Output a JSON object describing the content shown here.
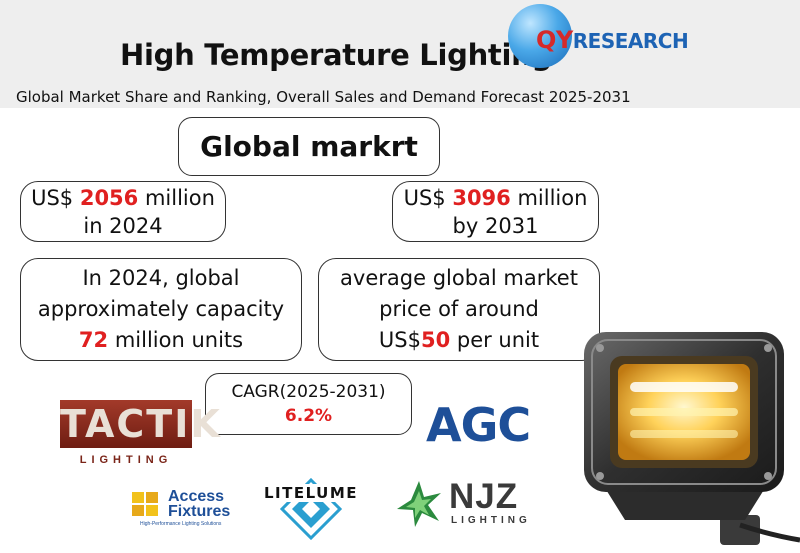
{
  "header": {
    "title": "High Temperature Lighting",
    "subtitle": "Global Market Share and Ranking, Overall Sales and Demand Forecast 2025-2031",
    "logo_prefix": "QY",
    "logo_rest": "RESEARCH"
  },
  "boxes": {
    "global": "Global markrt",
    "market_2024": {
      "prefix": "US$ ",
      "value": "2056",
      "suffix": " million",
      "line2": "in 2024"
    },
    "market_2031": {
      "prefix": "US$ ",
      "value": "3096",
      "suffix": " million",
      "line2": "by 2031"
    },
    "capacity": {
      "line1": "In 2024, global",
      "line2": "approximately capacity",
      "value": "72",
      "suffix": " million units"
    },
    "price": {
      "line1": "average global market",
      "line2": "price of around",
      "prefix": "US$",
      "value": "50",
      "suffix": " per unit"
    },
    "cagr": {
      "label": "CAGR(2025-2031)",
      "value": "6.2%"
    }
  },
  "logos": {
    "tactik_word": "TACTIK",
    "tactik_sub": "LIGHTING",
    "agc": "AGC",
    "access_1": "Access",
    "access_2": "Fixtures",
    "access_tag": "High-Performance Lighting Solutions",
    "litelume": "LITELUME",
    "njz_word": "NJZ",
    "njz_sub": "LIGHTING"
  },
  "colors": {
    "accent_red": "#e02020",
    "agc_blue": "#1e4f98",
    "tactik_red": "#8a2a1c",
    "header_band": "#eeeeee"
  }
}
